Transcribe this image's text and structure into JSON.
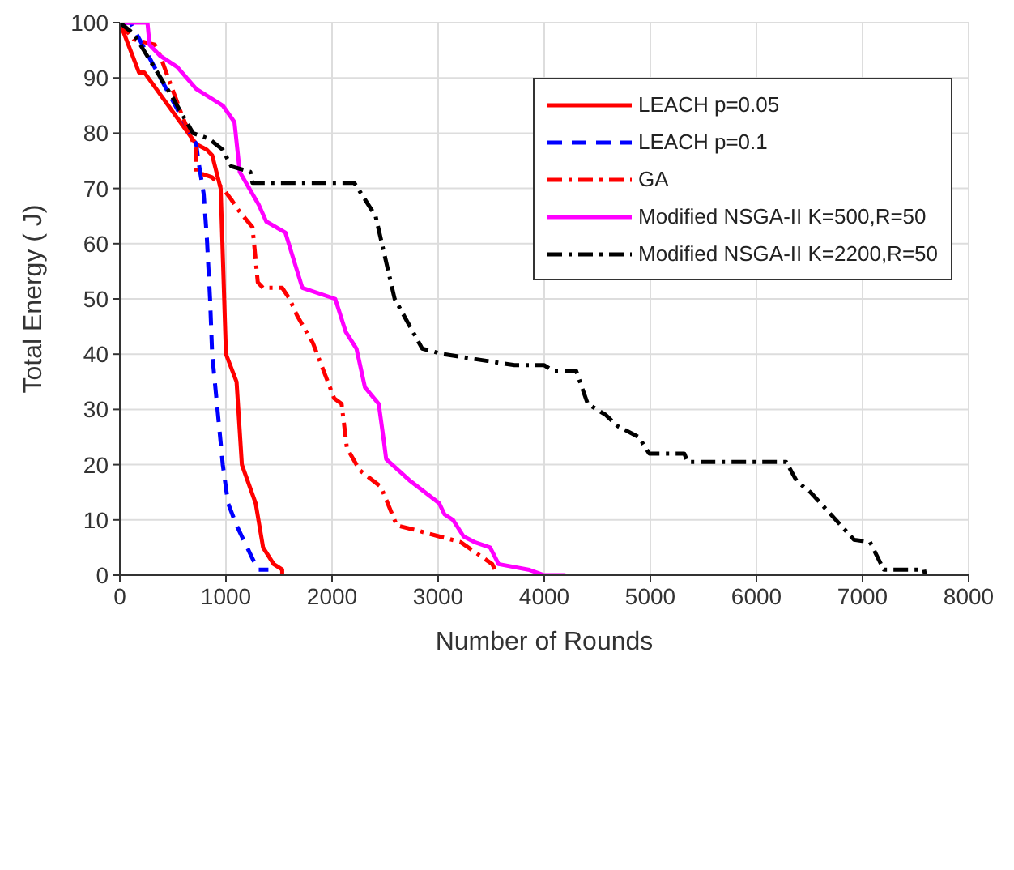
{
  "chart_data": {
    "type": "line",
    "xlabel": "Number of Rounds",
    "ylabel": "Total Energy ( J)",
    "xlim": [
      0,
      8000
    ],
    "xticks": [
      0,
      1000,
      2000,
      3000,
      4000,
      5000,
      6000,
      7000,
      8000
    ],
    "ylim": [
      0,
      100
    ],
    "yticks": [
      0,
      10,
      20,
      30,
      40,
      50,
      60,
      70,
      80,
      90,
      100
    ],
    "grid": true,
    "legend": "top right",
    "marker": "none",
    "series": [
      {
        "name": "LEACH p=0.05",
        "color": "#ff0000",
        "line_style": "solid",
        "x": [
          0,
          180,
          230,
          720,
          820,
          870,
          950,
          1000,
          1100,
          1150,
          1280,
          1350,
          1450,
          1530,
          1530
        ],
        "values": [
          100,
          91,
          91,
          78,
          77,
          76,
          70,
          40,
          35,
          20,
          13,
          5,
          2,
          1,
          0
        ]
      },
      {
        "name": "LEACH p=0.1",
        "color": "#0000ff",
        "line_style": "dashed",
        "x": [
          0,
          100,
          720,
          740,
          790,
          820,
          850,
          870,
          920,
          970,
          1020,
          1100,
          1200,
          1300,
          1400
        ],
        "values": [
          100,
          100,
          78,
          75,
          69,
          61,
          50,
          40,
          30,
          20,
          13,
          9,
          5,
          1,
          1
        ]
      },
      {
        "name": "GA",
        "color": "#ff0000",
        "line_style": "dashdot",
        "x": [
          0,
          130,
          330,
          380,
          590,
          720,
          720,
          870,
          970,
          1050,
          1120,
          1250,
          1300,
          1350,
          1530,
          1600,
          1670,
          1820,
          2020,
          2090,
          2140,
          2260,
          2460,
          2610,
          2820,
          3010,
          3210,
          3360,
          3510,
          3560
        ],
        "values": [
          100,
          97,
          96,
          94,
          83,
          77,
          73,
          72,
          70,
          68,
          66,
          63,
          53,
          52,
          52,
          50,
          47,
          42,
          32,
          31,
          23,
          19,
          16,
          9,
          8,
          7,
          6,
          4,
          2,
          0
        ]
      },
      {
        "name": "Modified NSGA-II K=500,R=50",
        "color": "#ff00ff",
        "line_style": "solid",
        "x": [
          0,
          260,
          280,
          380,
          540,
          720,
          970,
          1080,
          1130,
          1310,
          1380,
          1560,
          1720,
          2030,
          2130,
          2230,
          2310,
          2440,
          2490,
          2510,
          2740,
          3010,
          3060,
          3140,
          3240,
          3340,
          3490,
          3570,
          3850,
          4000,
          4200
        ],
        "values": [
          100,
          100,
          96,
          94,
          92,
          88,
          85,
          82,
          73,
          67,
          64,
          62,
          52,
          50,
          44,
          41,
          34,
          31,
          24,
          21,
          17,
          13,
          11,
          10,
          7,
          6,
          5,
          2,
          1,
          0,
          0
        ]
      },
      {
        "name": "Modified NSGA-II K=2200,R=50",
        "color": "#000000",
        "line_style": "dashdot",
        "x": [
          0,
          130,
          480,
          690,
          840,
          970,
          1050,
          1230,
          1250,
          2210,
          2410,
          2590,
          2850,
          3050,
          3720,
          4000,
          4080,
          4300,
          4410,
          4580,
          4690,
          4890,
          4990,
          5320,
          5350,
          6280,
          6380,
          6510,
          6920,
          7070,
          7200,
          7580,
          7590
        ],
        "values": [
          100,
          98,
          87,
          80,
          79,
          77,
          74,
          73,
          71,
          71,
          65,
          50,
          41,
          40,
          38,
          38,
          37,
          37,
          31,
          29,
          27,
          25,
          22,
          22,
          20.5,
          20.5,
          17,
          15,
          6.4,
          6,
          1,
          1,
          0
        ]
      }
    ]
  }
}
